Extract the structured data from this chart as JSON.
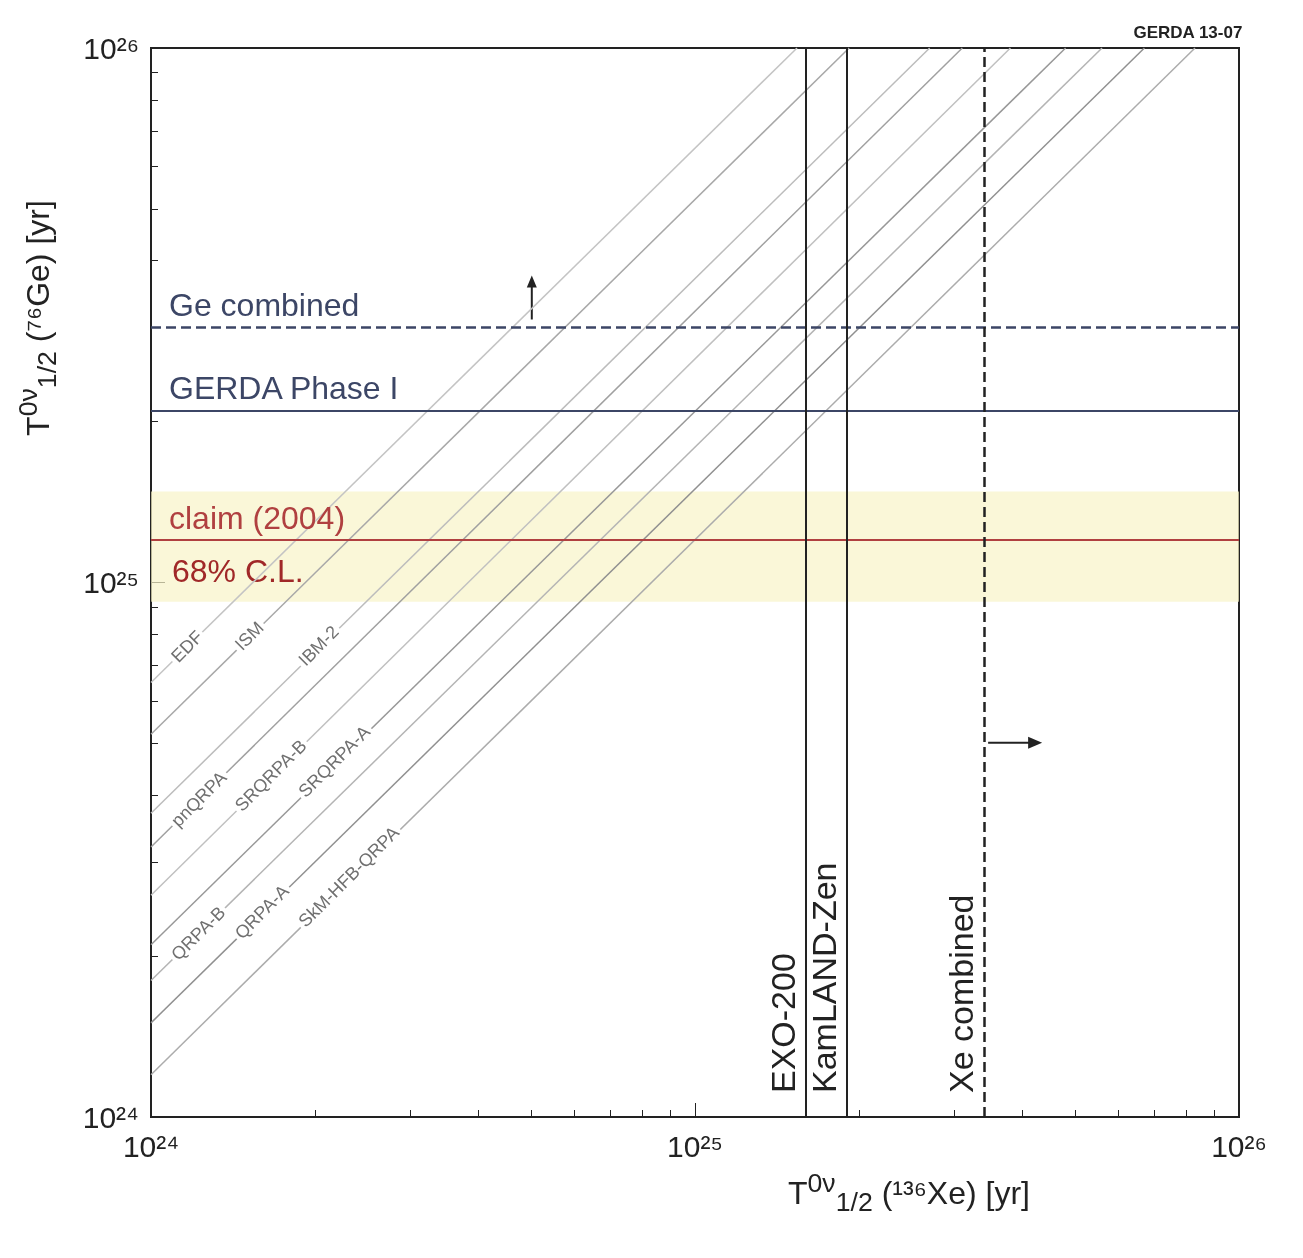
{
  "chart_data": {
    "type": "line",
    "xlabel": "T$^{0ν}$$_{1/2}$ (¹³⁶Xe)  [yr]",
    "ylabel": "T$^{0ν}$$_{1/2}$ (⁷⁶Ge)  [yr]",
    "log": "xy",
    "xlim": [
      1e+24,
      1e+26
    ],
    "ylim": [
      1e+24,
      1e+26
    ],
    "xticks": [
      {
        "value": 1e+24,
        "label": "10²⁴"
      },
      {
        "value": 1e+25,
        "label": "10²⁵"
      },
      {
        "value": 1e+26,
        "label": "10²⁶"
      }
    ],
    "yticks": [
      {
        "value": 1e+24,
        "label": "10²⁴"
      },
      {
        "value": 1e+25,
        "label": "10²⁵"
      },
      {
        "value": 1e+26,
        "label": "10²⁶"
      }
    ],
    "grid": false,
    "legend": false,
    "marker": "none",
    "annotations": [
      "GERDA 13-07"
    ],
    "series": [
      {
        "name": "EDF",
        "color": "#c4c4c4",
        "x": [
          1e+24,
          1.54e+25
        ],
        "values": [
          6.5e+24,
          1e+26
        ]
      },
      {
        "name": "ISM",
        "color": "#a8a8a8",
        "x": [
          1e+24,
          1.92e+25
        ],
        "values": [
          5.2e+24,
          1e+26
        ]
      },
      {
        "name": "IBM-2",
        "color": "#bcbcbc",
        "x": [
          1e+24,
          2.7e+25
        ],
        "values": [
          3.7e+24,
          1e+26
        ]
      },
      {
        "name": "pnQRPA",
        "color": "#a0a0a0",
        "x": [
          1e+24,
          3.1e+25
        ],
        "values": [
          3.2e+24,
          1e+26
        ]
      },
      {
        "name": "SRQRPA-B",
        "color": "#c0c0c0",
        "x": [
          1e+24,
          3.8e+25
        ],
        "values": [
          2.6e+24,
          1e+26
        ]
      },
      {
        "name": "SRQRPA-A",
        "color": "#989898",
        "x": [
          1e+24,
          4.8e+25
        ],
        "values": [
          2.1e+24,
          1e+26
        ]
      },
      {
        "name": "QRPA-B",
        "color": "#b4b4b4",
        "x": [
          1e+24,
          5.6e+25
        ],
        "values": [
          1.8e+24,
          1e+26
        ]
      },
      {
        "name": "QRPA-A",
        "color": "#909090",
        "x": [
          1e+24,
          6.7e+25
        ],
        "values": [
          1.5e+24,
          1e+26
        ]
      },
      {
        "name": "SkM-HFB-QRPA",
        "color": "#acacac",
        "x": [
          1e+24,
          8.3e+25
        ],
        "values": [
          1.2e+24,
          1e+26
        ]
      }
    ],
    "ref_lines": [
      {
        "axis": "y",
        "value": 3e+25,
        "label": "Ge combined",
        "color": "#3c4666",
        "line_style": "dashed"
      },
      {
        "axis": "y",
        "value": 2.1e+25,
        "label": "GERDA Phase I",
        "color": "#3c4666",
        "line_style": "solid"
      },
      {
        "axis": "y",
        "value": 1.2e+25,
        "label": "claim (2004)",
        "color": "#b04040",
        "line_style": "solid"
      },
      {
        "axis": "x",
        "value": 1.6e+25,
        "label": "EXO-200",
        "color": "#222222",
        "line_style": "solid"
      },
      {
        "axis": "x",
        "value": 1.9e+25,
        "label": "KamLAND-Zen",
        "color": "#222222",
        "line_style": "solid"
      },
      {
        "axis": "x",
        "value": 3.4e+25,
        "label": "Xe combined",
        "color": "#222222",
        "line_style": "dashed"
      }
    ],
    "bands": [
      {
        "axis": "y",
        "from": 9.2e+24,
        "to": 1.48e+25,
        "label": "68% C.L.",
        "color": "#f8f3c8"
      }
    ]
  }
}
